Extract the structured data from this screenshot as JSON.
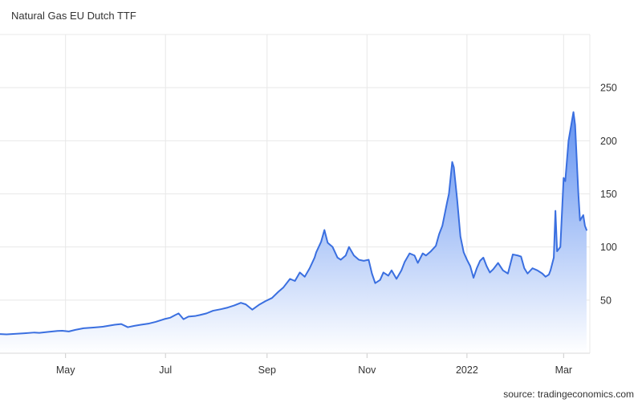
{
  "chart_data": {
    "type": "area",
    "title": "Natural Gas EU Dutch TTF",
    "source": "source: tradingeconomics.com",
    "xlabel": "",
    "ylabel": "",
    "x_range": [
      "2021-03-22",
      "2022-03-17"
    ],
    "ylim": [
      0,
      300
    ],
    "y_ticks": [
      50,
      100,
      150,
      200,
      250
    ],
    "x_ticks": [
      {
        "label": "May",
        "date": "2021-05-01"
      },
      {
        "label": "Jul",
        "date": "2021-07-01"
      },
      {
        "label": "Sep",
        "date": "2021-09-01"
      },
      {
        "label": "Nov",
        "date": "2021-11-01"
      },
      {
        "label": "2022",
        "date": "2022-01-01"
      },
      {
        "label": "Mar",
        "date": "2022-03-01"
      }
    ],
    "grid": true,
    "y_axis_position": "right",
    "colors": {
      "line": "#3a6fe0",
      "fill_top": "#5b8df0",
      "fill_bottom": "#ffffff",
      "grid": "#e8e8e8"
    },
    "series": [
      {
        "points": [
          [
            "2021-03-22",
            18
          ],
          [
            "2021-03-26",
            17.8
          ],
          [
            "2021-04-01",
            18.3
          ],
          [
            "2021-04-06",
            18.8
          ],
          [
            "2021-04-12",
            19.5
          ],
          [
            "2021-04-15",
            19.2
          ],
          [
            "2021-04-20",
            20
          ],
          [
            "2021-04-26",
            21
          ],
          [
            "2021-04-29",
            21.2
          ],
          [
            "2021-05-03",
            20.5
          ],
          [
            "2021-05-07",
            22
          ],
          [
            "2021-05-12",
            23.5
          ],
          [
            "2021-05-18",
            24.2
          ],
          [
            "2021-05-24",
            25
          ],
          [
            "2021-05-31",
            26.8
          ],
          [
            "2021-06-04",
            27.5
          ],
          [
            "2021-06-08",
            24.5
          ],
          [
            "2021-06-12",
            25.8
          ],
          [
            "2021-06-16",
            26.8
          ],
          [
            "2021-06-21",
            28
          ],
          [
            "2021-06-25",
            29.5
          ],
          [
            "2021-06-30",
            32
          ],
          [
            "2021-07-04",
            33.5
          ],
          [
            "2021-07-07",
            36
          ],
          [
            "2021-07-09",
            37.5
          ],
          [
            "2021-07-12",
            32
          ],
          [
            "2021-07-15",
            34.5
          ],
          [
            "2021-07-19",
            35
          ],
          [
            "2021-07-22",
            36
          ],
          [
            "2021-07-26",
            37.5
          ],
          [
            "2021-07-30",
            40
          ],
          [
            "2021-08-04",
            41.5
          ],
          [
            "2021-08-08",
            43
          ],
          [
            "2021-08-12",
            45
          ],
          [
            "2021-08-16",
            47.5
          ],
          [
            "2021-08-19",
            46
          ],
          [
            "2021-08-23",
            41
          ],
          [
            "2021-08-27",
            45.5
          ],
          [
            "2021-08-31",
            49
          ],
          [
            "2021-09-04",
            52
          ],
          [
            "2021-09-08",
            58
          ],
          [
            "2021-09-11",
            62
          ],
          [
            "2021-09-15",
            70
          ],
          [
            "2021-09-18",
            68
          ],
          [
            "2021-09-21",
            76
          ],
          [
            "2021-09-24",
            72
          ],
          [
            "2021-09-27",
            80
          ],
          [
            "2021-09-30",
            90
          ],
          [
            "2021-10-01",
            95
          ],
          [
            "2021-10-04",
            105
          ],
          [
            "2021-10-06",
            116
          ],
          [
            "2021-10-08",
            104
          ],
          [
            "2021-10-11",
            100
          ],
          [
            "2021-10-14",
            90
          ],
          [
            "2021-10-16",
            88
          ],
          [
            "2021-10-19",
            92
          ],
          [
            "2021-10-21",
            100
          ],
          [
            "2021-10-24",
            92
          ],
          [
            "2021-10-27",
            88
          ],
          [
            "2021-10-30",
            87
          ],
          [
            "2021-11-02",
            88
          ],
          [
            "2021-11-04",
            75
          ],
          [
            "2021-11-06",
            66
          ],
          [
            "2021-11-09",
            69
          ],
          [
            "2021-11-11",
            76
          ],
          [
            "2021-11-14",
            73
          ],
          [
            "2021-11-16",
            78
          ],
          [
            "2021-11-19",
            70
          ],
          [
            "2021-11-22",
            78
          ],
          [
            "2021-11-24",
            86
          ],
          [
            "2021-11-27",
            94
          ],
          [
            "2021-11-30",
            92
          ],
          [
            "2021-12-02",
            85
          ],
          [
            "2021-12-05",
            94
          ],
          [
            "2021-12-07",
            92
          ],
          [
            "2021-12-10",
            96
          ],
          [
            "2021-12-13",
            101
          ],
          [
            "2021-12-15",
            112
          ],
          [
            "2021-12-17",
            120
          ],
          [
            "2021-12-20",
            143
          ],
          [
            "2021-12-21",
            150
          ],
          [
            "2021-12-23",
            180
          ],
          [
            "2021-12-24",
            175
          ],
          [
            "2021-12-26",
            145
          ],
          [
            "2021-12-28",
            110
          ],
          [
            "2021-12-30",
            95
          ],
          [
            "2022-01-01",
            88
          ],
          [
            "2022-01-03",
            82
          ],
          [
            "2022-01-05",
            71
          ],
          [
            "2022-01-07",
            80
          ],
          [
            "2022-01-09",
            87
          ],
          [
            "2022-01-11",
            90
          ],
          [
            "2022-01-13",
            82
          ],
          [
            "2022-01-15",
            76
          ],
          [
            "2022-01-17",
            79
          ],
          [
            "2022-01-20",
            85
          ],
          [
            "2022-01-23",
            78
          ],
          [
            "2022-01-26",
            75
          ],
          [
            "2022-01-29",
            93
          ],
          [
            "2022-02-01",
            92
          ],
          [
            "2022-02-03",
            91
          ],
          [
            "2022-02-05",
            80
          ],
          [
            "2022-02-07",
            75
          ],
          [
            "2022-02-10",
            80
          ],
          [
            "2022-02-13",
            78
          ],
          [
            "2022-02-16",
            75
          ],
          [
            "2022-02-18",
            72
          ],
          [
            "2022-02-20",
            74
          ],
          [
            "2022-02-21",
            78
          ],
          [
            "2022-02-23",
            90
          ],
          [
            "2022-02-24",
            134
          ],
          [
            "2022-02-25",
            96
          ],
          [
            "2022-02-27",
            100
          ],
          [
            "2022-03-01",
            165
          ],
          [
            "2022-03-02",
            162
          ],
          [
            "2022-03-04",
            200
          ],
          [
            "2022-03-07",
            227
          ],
          [
            "2022-03-08",
            215
          ],
          [
            "2022-03-10",
            150
          ],
          [
            "2022-03-11",
            125
          ],
          [
            "2022-03-13",
            130
          ],
          [
            "2022-03-14",
            120
          ],
          [
            "2022-03-15",
            116
          ]
        ]
      }
    ]
  }
}
